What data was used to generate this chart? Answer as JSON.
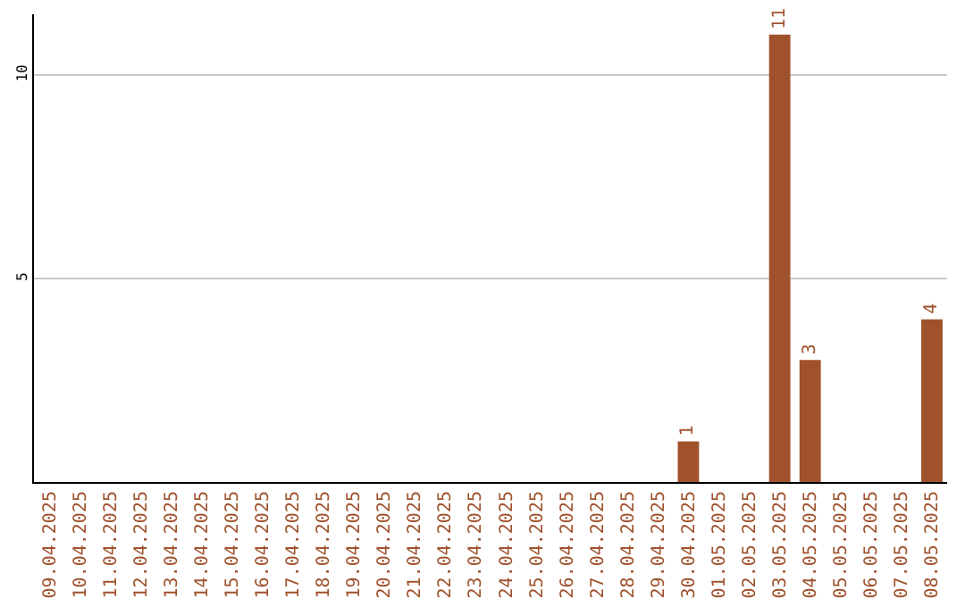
{
  "chart_data": {
    "type": "bar",
    "categories": [
      "09.04.2025",
      "10.04.2025",
      "11.04.2025",
      "12.04.2025",
      "13.04.2025",
      "14.04.2025",
      "15.04.2025",
      "16.04.2025",
      "17.04.2025",
      "18.04.2025",
      "19.04.2025",
      "20.04.2025",
      "21.04.2025",
      "22.04.2025",
      "23.04.2025",
      "24.04.2025",
      "25.04.2025",
      "26.04.2025",
      "27.04.2025",
      "28.04.2025",
      "29.04.2025",
      "30.04.2025",
      "01.05.2025",
      "02.05.2025",
      "03.05.2025",
      "04.05.2025",
      "05.05.2025",
      "06.05.2025",
      "07.05.2025",
      "08.05.2025"
    ],
    "values": [
      0,
      0,
      0,
      0,
      0,
      0,
      0,
      0,
      0,
      0,
      0,
      0,
      0,
      0,
      0,
      0,
      0,
      0,
      0,
      0,
      0,
      1,
      0,
      0,
      11,
      3,
      0,
      0,
      0,
      4
    ],
    "value_labels": [
      null,
      null,
      null,
      null,
      null,
      null,
      null,
      null,
      null,
      null,
      null,
      null,
      null,
      null,
      null,
      null,
      null,
      null,
      null,
      null,
      null,
      "1",
      null,
      null,
      "11",
      "3",
      null,
      null,
      null,
      "4"
    ],
    "color": "#a0522d",
    "ylim": [
      0,
      11.5
    ],
    "yticks": [
      5,
      10
    ],
    "grid": "y"
  }
}
